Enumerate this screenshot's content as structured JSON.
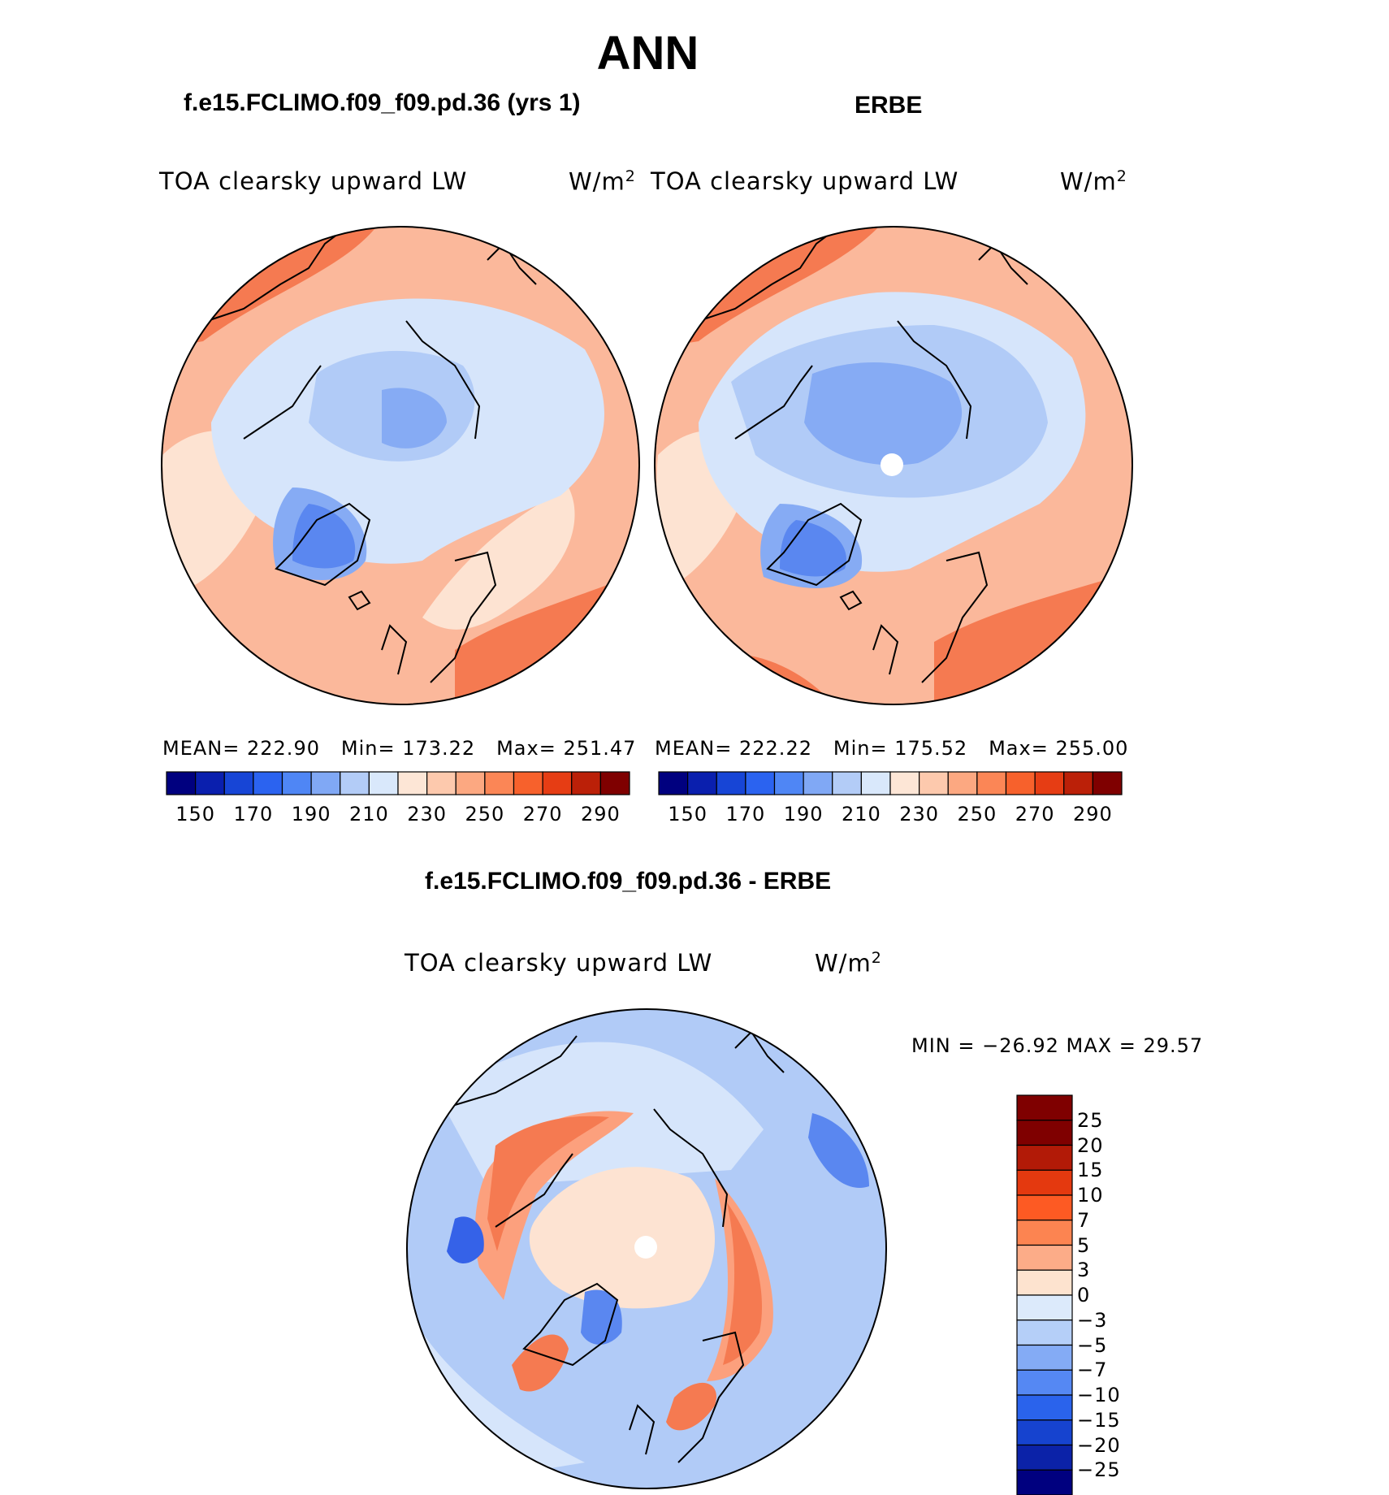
{
  "figure": {
    "title": "ANN"
  },
  "panels": [
    {
      "id": "model",
      "case_title": "f.e15.FCLIMO.f09_f09.pd.36 (yrs 1)",
      "variable": "TOA clearsky upward LW",
      "units": "W/m",
      "units_exp": "2",
      "stats": {
        "mean_label": "MEAN=",
        "mean": "222.90",
        "min_label": "Min=",
        "min": "173.22",
        "max_label": "Max=",
        "max": "251.47"
      }
    },
    {
      "id": "obs",
      "case_title": "ERBE",
      "variable": "TOA clearsky upward LW",
      "units": "W/m",
      "units_exp": "2",
      "stats": {
        "mean_label": "MEAN=",
        "mean": "222.22",
        "min_label": "Min=",
        "min": "175.52",
        "max_label": "Max=",
        "max": "255.00"
      }
    },
    {
      "id": "diff",
      "case_title": "f.e15.FCLIMO.f09_f09.pd.36 - ERBE",
      "variable": "TOA clearsky upward LW",
      "units": "W/m",
      "units_exp": "2",
      "stats_text": "MIN = −26.92 MAX =   29.57"
    }
  ],
  "colorbars": {
    "abs": {
      "colors": [
        "#00007f",
        "#0a1fae",
        "#1745d6",
        "#2b63f0",
        "#4f86f5",
        "#80a8f5",
        "#b3ccf7",
        "#d9e8fb",
        "#fde6d6",
        "#fdc9ad",
        "#fca881",
        "#fb8656",
        "#f7612c",
        "#e63d14",
        "#bb2008",
        "#7f0000"
      ],
      "tick_labels": [
        "150",
        "170",
        "190",
        "210",
        "230",
        "250",
        "270",
        "290"
      ]
    },
    "diff": {
      "colors": [
        "#7f0000",
        "#b21a07",
        "#e4390f",
        "#fd5a23",
        "#fc8451",
        "#fcac88",
        "#fde3cf",
        "#dceafb",
        "#b5cff8",
        "#84abf5",
        "#5588f3",
        "#2a63ec",
        "#1643cf",
        "#0b22a8",
        "#00007f"
      ],
      "tick_labels": [
        "25",
        "20",
        "15",
        "10",
        "7",
        "5",
        "3",
        "0",
        "−3",
        "−5",
        "−7",
        "−10",
        "−15",
        "−20",
        "−25"
      ]
    }
  },
  "map_colors": {
    "ocean_warm": "#fbb89b",
    "warm_light": "#fde3d2",
    "warm_mid": "#fca07d",
    "warm_strong": "#f57a51",
    "cold_pale": "#d6e5fb",
    "cold_light": "#b1cbf7",
    "cold_mid": "#86abf4",
    "cold_strong": "#5a87f0",
    "cold_deep": "#3562e8"
  }
}
